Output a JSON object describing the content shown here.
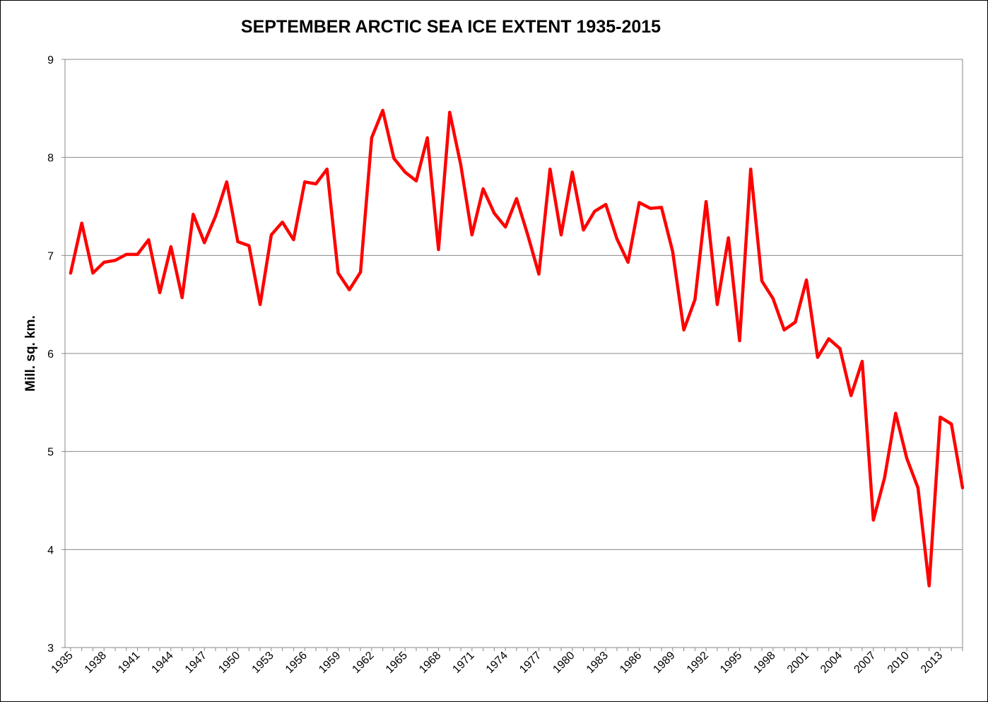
{
  "chart_data": {
    "type": "line",
    "title": "SEPTEMBER ARCTIC SEA ICE EXTENT 1935-2015",
    "xlabel": "",
    "ylabel": "Mill. sq. km.",
    "ylim": [
      3,
      9
    ],
    "yticks": [
      "3",
      "4",
      "5",
      "6",
      "7",
      "8",
      "9"
    ],
    "xtick_labels": [
      "1935",
      "1938",
      "1941",
      "1944",
      "1947",
      "1950",
      "1953",
      "1956",
      "1959",
      "1962",
      "1965",
      "1968",
      "1971",
      "1974",
      "1977",
      "1980",
      "1983",
      "1986",
      "1989",
      "1992",
      "1995",
      "1998",
      "2001",
      "2004",
      "2007",
      "2010",
      "2013"
    ],
    "grid": "horizontal",
    "line_color": "#ff0000",
    "x": [
      1935,
      1936,
      1937,
      1938,
      1939,
      1940,
      1941,
      1942,
      1943,
      1944,
      1945,
      1946,
      1947,
      1948,
      1949,
      1950,
      1951,
      1952,
      1953,
      1954,
      1955,
      1956,
      1957,
      1958,
      1959,
      1960,
      1961,
      1962,
      1963,
      1964,
      1965,
      1966,
      1967,
      1968,
      1969,
      1970,
      1971,
      1972,
      1973,
      1974,
      1975,
      1976,
      1977,
      1978,
      1979,
      1980,
      1981,
      1982,
      1983,
      1984,
      1985,
      1986,
      1987,
      1988,
      1989,
      1990,
      1991,
      1992,
      1993,
      1994,
      1995,
      1996,
      1997,
      1998,
      1999,
      2000,
      2001,
      2002,
      2003,
      2004,
      2005,
      2006,
      2007,
      2008,
      2009,
      2010,
      2011,
      2012,
      2013,
      2014,
      2015
    ],
    "values": [
      6.82,
      7.33,
      6.82,
      6.93,
      6.95,
      7.01,
      7.01,
      7.16,
      6.62,
      7.09,
      6.57,
      7.42,
      7.13,
      7.4,
      7.75,
      7.14,
      7.1,
      6.5,
      7.21,
      7.34,
      7.16,
      7.75,
      7.73,
      7.88,
      6.82,
      6.65,
      6.83,
      8.2,
      8.48,
      7.99,
      7.85,
      7.76,
      8.2,
      7.06,
      8.46,
      7.92,
      7.21,
      7.68,
      7.43,
      7.29,
      7.58,
      7.21,
      6.81,
      7.88,
      7.21,
      7.85,
      7.26,
      7.45,
      7.52,
      7.17,
      6.93,
      7.54,
      7.48,
      7.49,
      7.04,
      6.24,
      6.55,
      7.55,
      6.5,
      7.18,
      6.13,
      7.88,
      6.74,
      6.56,
      6.24,
      6.32,
      6.75,
      5.96,
      6.15,
      6.05,
      5.57,
      5.92,
      4.3,
      4.73,
      5.39,
      4.93,
      4.63,
      3.63,
      5.35,
      5.28,
      4.63
    ]
  }
}
